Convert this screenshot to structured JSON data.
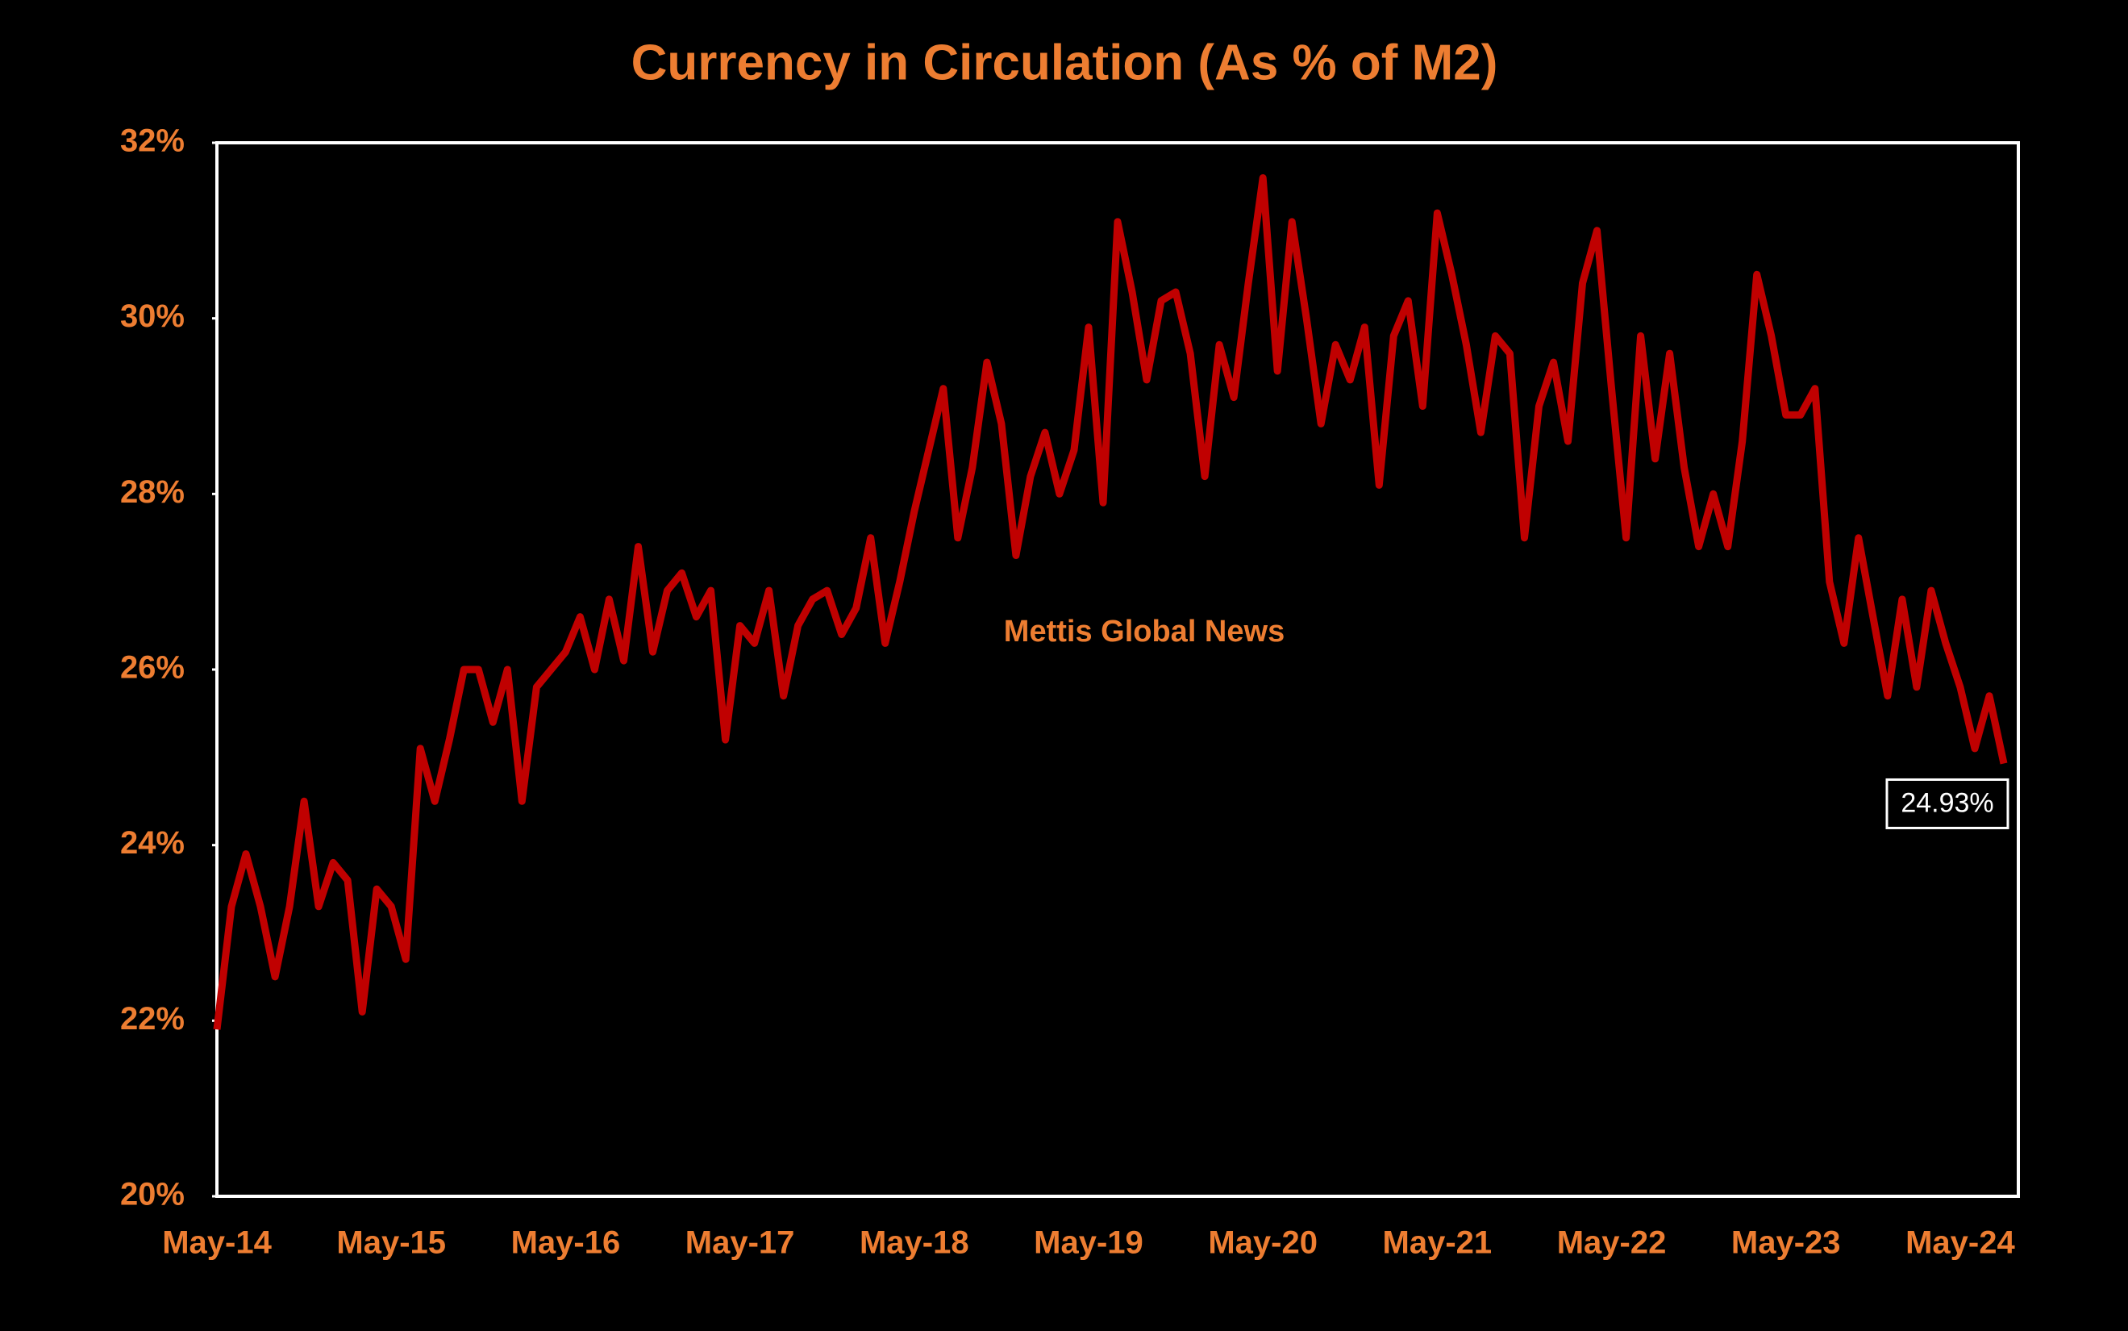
{
  "chart_data": {
    "type": "line",
    "title": "Currency in Circulation (As % of M2)",
    "annotations": [
      "Mettis Global News"
    ],
    "categories": [
      "May-14",
      null,
      null,
      null,
      null,
      null,
      null,
      null,
      null,
      null,
      null,
      null,
      "May-15",
      null,
      null,
      null,
      null,
      null,
      null,
      null,
      null,
      null,
      null,
      null,
      "May-16",
      null,
      null,
      null,
      null,
      null,
      null,
      null,
      null,
      null,
      null,
      null,
      "May-17",
      null,
      null,
      null,
      null,
      null,
      null,
      null,
      null,
      null,
      null,
      null,
      "May-18",
      null,
      null,
      null,
      null,
      null,
      null,
      null,
      null,
      null,
      null,
      null,
      "May-19",
      null,
      null,
      null,
      null,
      null,
      null,
      null,
      null,
      null,
      null,
      null,
      "May-20",
      null,
      null,
      null,
      null,
      null,
      null,
      null,
      null,
      null,
      null,
      null,
      "May-21",
      null,
      null,
      null,
      null,
      null,
      null,
      null,
      null,
      null,
      null,
      null,
      "May-22",
      null,
      null,
      null,
      null,
      null,
      null,
      null,
      null,
      null,
      null,
      null,
      "May-23",
      null,
      null,
      null,
      null,
      null,
      null,
      null,
      null,
      null,
      null,
      null,
      "May-24",
      null,
      null,
      null
    ],
    "values": [
      21.9,
      23.3,
      23.9,
      23.3,
      22.5,
      23.3,
      24.5,
      23.3,
      23.8,
      23.6,
      22.1,
      23.5,
      23.3,
      22.7,
      25.1,
      24.5,
      25.2,
      26.0,
      26.0,
      25.4,
      26.0,
      24.5,
      25.8,
      26.0,
      26.2,
      26.6,
      26.0,
      26.8,
      26.1,
      27.4,
      26.2,
      26.9,
      27.1,
      26.6,
      26.9,
      25.2,
      26.5,
      26.3,
      26.9,
      25.7,
      26.5,
      26.8,
      26.9,
      26.4,
      26.7,
      27.5,
      26.3,
      27.0,
      27.8,
      28.5,
      29.2,
      27.5,
      28.3,
      29.5,
      28.8,
      27.3,
      28.2,
      28.7,
      28.0,
      28.5,
      29.9,
      27.9,
      31.1,
      30.3,
      29.3,
      30.2,
      30.3,
      29.6,
      28.2,
      29.7,
      29.1,
      30.4,
      31.6,
      29.4,
      31.1,
      30.0,
      28.8,
      29.7,
      29.3,
      29.9,
      28.1,
      29.8,
      30.2,
      29.0,
      31.2,
      30.5,
      29.7,
      28.7,
      29.8,
      29.6,
      27.5,
      29.0,
      29.5,
      28.6,
      30.4,
      31.0,
      29.2,
      27.5,
      29.8,
      28.4,
      29.6,
      28.3,
      27.4,
      28.0,
      27.4,
      28.6,
      30.5,
      29.8,
      28.9,
      28.9,
      29.2,
      27.0,
      26.3,
      27.5,
      26.6,
      25.7,
      26.8,
      25.8,
      26.9,
      26.3,
      25.8,
      25.1,
      25.7,
      24.93
    ],
    "value_labels": [
      null,
      null,
      null,
      null,
      null,
      null,
      null,
      null,
      null,
      null,
      null,
      null,
      null,
      null,
      null,
      null,
      null,
      null,
      null,
      null,
      null,
      null,
      null,
      null,
      null,
      null,
      null,
      null,
      null,
      null,
      null,
      null,
      null,
      null,
      null,
      null,
      null,
      null,
      null,
      null,
      null,
      null,
      null,
      null,
      null,
      null,
      null,
      null,
      null,
      null,
      null,
      null,
      null,
      null,
      null,
      null,
      null,
      null,
      null,
      null,
      null,
      null,
      null,
      null,
      null,
      null,
      null,
      null,
      null,
      null,
      null,
      null,
      null,
      null,
      null,
      null,
      null,
      null,
      null,
      null,
      null,
      null,
      null,
      null,
      null,
      null,
      null,
      null,
      null,
      null,
      null,
      null,
      null,
      null,
      null,
      null,
      null,
      null,
      null,
      null,
      null,
      null,
      null,
      null,
      null,
      null,
      null,
      null,
      null,
      null,
      null,
      null,
      null,
      null,
      null,
      null,
      null,
      null,
      null,
      null,
      null,
      null,
      null,
      "24.93%"
    ],
    "color": "#c00000",
    "ylim": [
      20,
      32
    ],
    "yticks": [
      {
        "value": 20,
        "label": "20%"
      },
      {
        "value": 22,
        "label": "22%"
      },
      {
        "value": 24,
        "label": "24%"
      },
      {
        "value": 26,
        "label": "26%"
      },
      {
        "value": 28,
        "label": "28%"
      },
      {
        "value": 30,
        "label": "30%"
      },
      {
        "value": 32,
        "label": "32%"
      }
    ],
    "grid": false
  }
}
